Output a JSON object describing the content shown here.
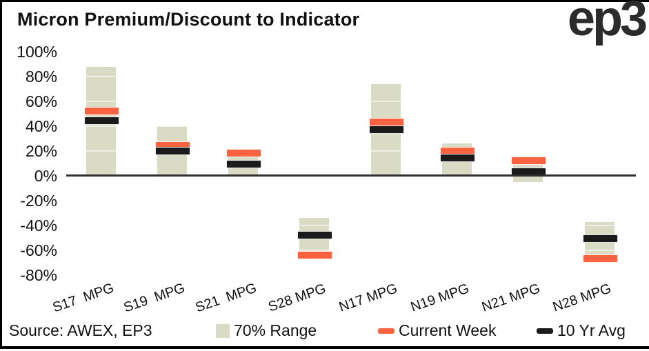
{
  "header": {
    "title": "Micron Premium/Discount to Indicator",
    "logo": "ep3"
  },
  "chart_data": {
    "type": "bar",
    "subtype": "floating-range-bars-with-marker-bands",
    "title": "Micron Premium/Discount to Indicator",
    "categories": [
      "S17  MPG",
      "S19  MPG",
      "S21  MPG",
      "S28 MPG",
      "N17 MPG",
      "N19 MPG",
      "N21 MPG",
      "N28 MPG"
    ],
    "series": [
      {
        "name": "70% Range",
        "type": "range",
        "low": [
          0,
          0,
          0,
          -62,
          0,
          0,
          -5,
          -64
        ],
        "high": [
          88,
          40,
          15,
          -34,
          74,
          26,
          10,
          -37
        ]
      },
      {
        "name": "Current Week",
        "type": "band",
        "values": [
          52,
          24,
          18,
          -64,
          43,
          20,
          12,
          -67
        ]
      },
      {
        "name": "10 Yr Avg",
        "type": "band",
        "values": [
          44,
          20,
          9,
          -48,
          37,
          14,
          3,
          -51
        ]
      }
    ],
    "ylim": [
      -80,
      100
    ],
    "yticks": [
      {
        "value": 100,
        "label": "100%"
      },
      {
        "value": 80,
        "label": "80%"
      },
      {
        "value": 60,
        "label": "60%"
      },
      {
        "value": 40,
        "label": "40%"
      },
      {
        "value": 20,
        "label": "20%"
      },
      {
        "value": 0,
        "label": "0%"
      },
      {
        "value": -20,
        "label": "-20%"
      },
      {
        "value": -40,
        "label": "-40%"
      },
      {
        "value": -60,
        "label": "-60%"
      },
      {
        "value": -80,
        "label": "-80%"
      }
    ],
    "gridlines": "faint white lines at 20% steps, visible only across bars",
    "legend_position": "bottom"
  },
  "footer": {
    "source": "Source: AWEX, EP3",
    "legend": [
      {
        "label": "70% Range",
        "swatch": "square"
      },
      {
        "label": "Current Week",
        "swatch": "dash"
      },
      {
        "label": "10 Yr Avg",
        "swatch": "dash"
      }
    ]
  },
  "colors": {
    "range": "#D9DBC5",
    "current": "#FB6340",
    "avg": "#1B1B1B",
    "axis": "#2F2F2F",
    "text": "#111111",
    "logo": "#2B2B2B"
  }
}
